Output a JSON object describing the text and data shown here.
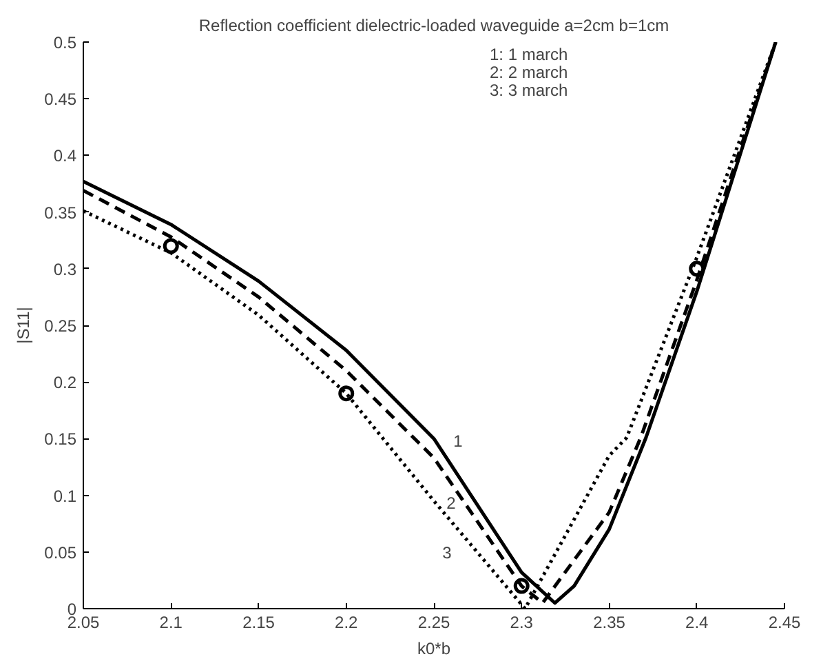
{
  "chart_data": {
    "type": "line",
    "title": "Reflection coefficient dielectric-loaded waveguide a=2cm b=1cm",
    "xlabel": "k0*b",
    "ylabel": "|S11|",
    "xlim": [
      2.05,
      2.45
    ],
    "ylim": [
      0,
      0.5
    ],
    "xticks": [
      2.05,
      2.1,
      2.15,
      2.2,
      2.25,
      2.3,
      2.35,
      2.4,
      2.45
    ],
    "yticks": [
      0,
      0.05,
      0.1,
      0.15,
      0.2,
      0.25,
      0.3,
      0.35,
      0.4,
      0.45,
      0.5
    ],
    "grid": false,
    "series": [
      {
        "color": "#000000",
        "line_style": "solid",
        "marker": "none",
        "x": [
          2.05,
          2.1,
          2.15,
          2.2,
          2.25,
          2.3,
          2.319,
          2.33,
          2.35,
          2.371,
          2.4,
          2.445
        ],
        "values": [
          0.377,
          0.339,
          0.289,
          0.228,
          0.15,
          0.032,
          0.005,
          0.02,
          0.07,
          0.151,
          0.28,
          0.5
        ]
      },
      {
        "color": "#000000",
        "line_style": "dashed",
        "marker": "none",
        "x": [
          2.05,
          2.1,
          2.15,
          2.2,
          2.25,
          2.3,
          2.312,
          2.35,
          2.368,
          2.4,
          2.445
        ],
        "values": [
          0.369,
          0.328,
          0.275,
          0.21,
          0.133,
          0.02,
          0.005,
          0.085,
          0.151,
          0.29,
          0.5
        ]
      },
      {
        "color": "#000000",
        "line_style": "dotted",
        "marker": "none",
        "x": [
          2.05,
          2.1,
          2.15,
          2.2,
          2.25,
          2.302,
          2.35,
          2.36,
          2.4,
          2.445
        ],
        "values": [
          0.351,
          0.314,
          0.259,
          0.19,
          0.095,
          0,
          0.135,
          0.151,
          0.31,
          0.5
        ]
      },
      {
        "type": "scatter",
        "color": "#000000",
        "marker": "circle",
        "x": [
          2.1,
          2.2,
          2.3,
          2.4
        ],
        "values": [
          0.32,
          0.19,
          0.02,
          0.3
        ]
      }
    ],
    "annotations": [
      "1: 1 march",
      "2: 2 march",
      "3: 3 march",
      "1",
      "2",
      "3"
    ]
  }
}
